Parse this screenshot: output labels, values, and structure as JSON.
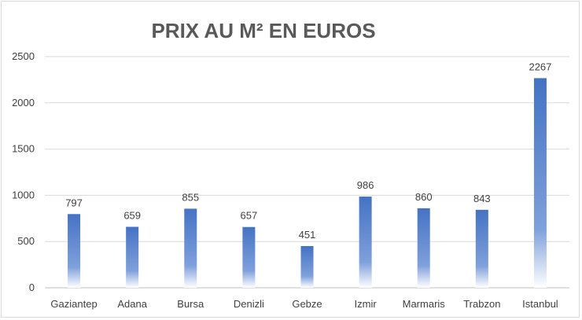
{
  "chart_data": {
    "type": "bar",
    "title": "PRIX AU M² EN EUROS",
    "categories": [
      "Gaziantep",
      "Adana",
      "Bursa",
      "Denizli",
      "Gebze",
      "Izmir",
      "Marmaris",
      "Trabzon",
      "Istanbul"
    ],
    "values": [
      797,
      659,
      855,
      657,
      451,
      986,
      860,
      843,
      2267
    ],
    "ylim": [
      0,
      2500
    ],
    "yticks": [
      0,
      500,
      1000,
      1500,
      2000,
      2500
    ],
    "grid": true,
    "legend": "none",
    "colors": {
      "bar_top": "#4472C4",
      "bar_bottom": "#ffffff",
      "gridline": "#d9d9d9",
      "text": "#404040",
      "title": "#595959"
    }
  }
}
